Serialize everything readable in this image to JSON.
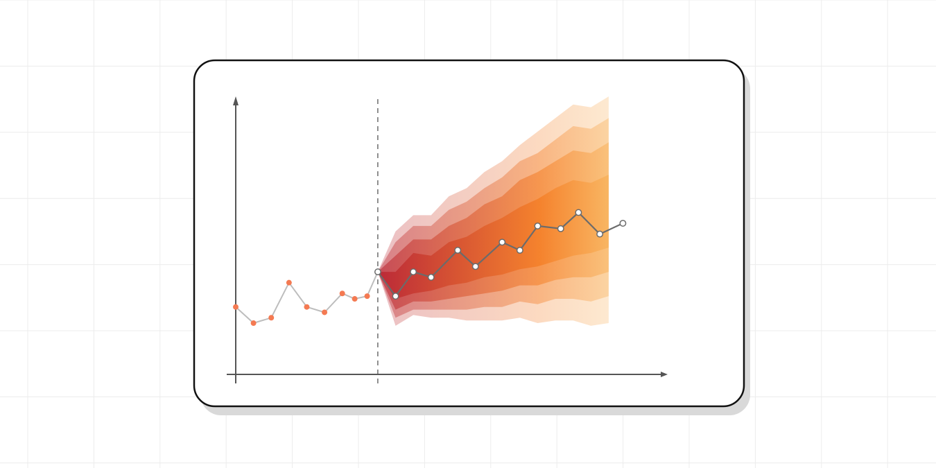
{
  "chart_data": {
    "type": "line",
    "title": "",
    "xlabel": "",
    "ylabel": "",
    "grid": false,
    "legend": "none",
    "forecast_start_x": 8,
    "xlim": [
      0,
      24.4
    ],
    "ylim": [
      0,
      10.2
    ],
    "history": {
      "x": [
        0,
        1,
        2,
        3,
        4,
        5,
        6,
        6.7,
        7.4,
        8
      ],
      "y": [
        2.5,
        1.9,
        2.1,
        3.4,
        2.5,
        2.3,
        3.0,
        2.8,
        2.9,
        3.8
      ]
    },
    "forecast": {
      "x": [
        8,
        9,
        10,
        11,
        12,
        13,
        14,
        15,
        16,
        17,
        18,
        19,
        20,
        21
      ],
      "y": [
        3.8,
        2.9,
        3.9,
        3.8,
        4.3,
        4.4,
        5.1,
        5.4,
        6.0,
        5.9,
        6.7,
        7.1,
        6.2,
        6.8
      ],
      "point_x": [
        8,
        9,
        10,
        11,
        12.5,
        13.5,
        15,
        16,
        17,
        18.3,
        19.3,
        20.5,
        21.8
      ],
      "point_y": [
        3.8,
        2.9,
        3.8,
        3.6,
        4.6,
        4.0,
        4.9,
        4.6,
        5.5,
        5.4,
        6.0,
        5.2,
        5.6
      ]
    },
    "fan_bands": [
      {
        "level": 1,
        "lower": [
          3.8,
          2.8,
          3.0,
          3.1,
          3.3,
          3.4,
          3.6,
          3.7,
          3.9,
          4.0,
          4.2,
          4.4,
          4.5,
          4.7
        ],
        "upper": [
          3.8,
          3.8,
          4.5,
          4.4,
          4.9,
          5.1,
          5.5,
          5.8,
          6.2,
          6.5,
          6.9,
          7.2,
          7.1,
          7.4
        ]
      },
      {
        "level": 2,
        "lower": [
          3.8,
          2.4,
          2.7,
          2.7,
          2.8,
          2.9,
          3.0,
          3.1,
          3.3,
          3.3,
          3.5,
          3.6,
          3.6,
          3.8
        ],
        "upper": [
          3.8,
          4.4,
          5.0,
          5.0,
          5.5,
          5.8,
          6.3,
          6.6,
          7.2,
          7.5,
          7.9,
          8.3,
          8.2,
          8.6
        ]
      },
      {
        "level": 3,
        "lower": [
          3.8,
          2.1,
          2.4,
          2.4,
          2.4,
          2.4,
          2.5,
          2.5,
          2.7,
          2.6,
          2.8,
          2.8,
          2.7,
          2.9
        ],
        "upper": [
          3.8,
          4.9,
          5.5,
          5.5,
          6.1,
          6.4,
          6.9,
          7.3,
          7.9,
          8.2,
          8.7,
          9.2,
          9.1,
          9.5
        ]
      },
      {
        "level": 4,
        "lower": [
          3.8,
          1.8,
          2.2,
          2.1,
          2.1,
          2.0,
          2.0,
          2.0,
          2.1,
          1.9,
          2.0,
          2.0,
          1.8,
          1.9
        ],
        "upper": [
          3.8,
          5.3,
          5.9,
          5.9,
          6.6,
          6.9,
          7.5,
          7.9,
          8.5,
          9.0,
          9.5,
          10.0,
          9.9,
          10.3
        ]
      }
    ],
    "colors": {
      "history_points": "#f47a52",
      "history_line": "#bdbdbd",
      "forecast_line": "#6b6b6b",
      "forecast_points_fill": "#ffffff",
      "forecast_points_stroke": "#6b6b6b",
      "fan_start": "#b81d2a",
      "fan_mid": "#f47a1f",
      "fan_end": "#fbd27a",
      "axis": "#555555",
      "card_border": "#111111",
      "card_shadow": "#d9d9d9",
      "page_grid": "#ececec"
    }
  }
}
